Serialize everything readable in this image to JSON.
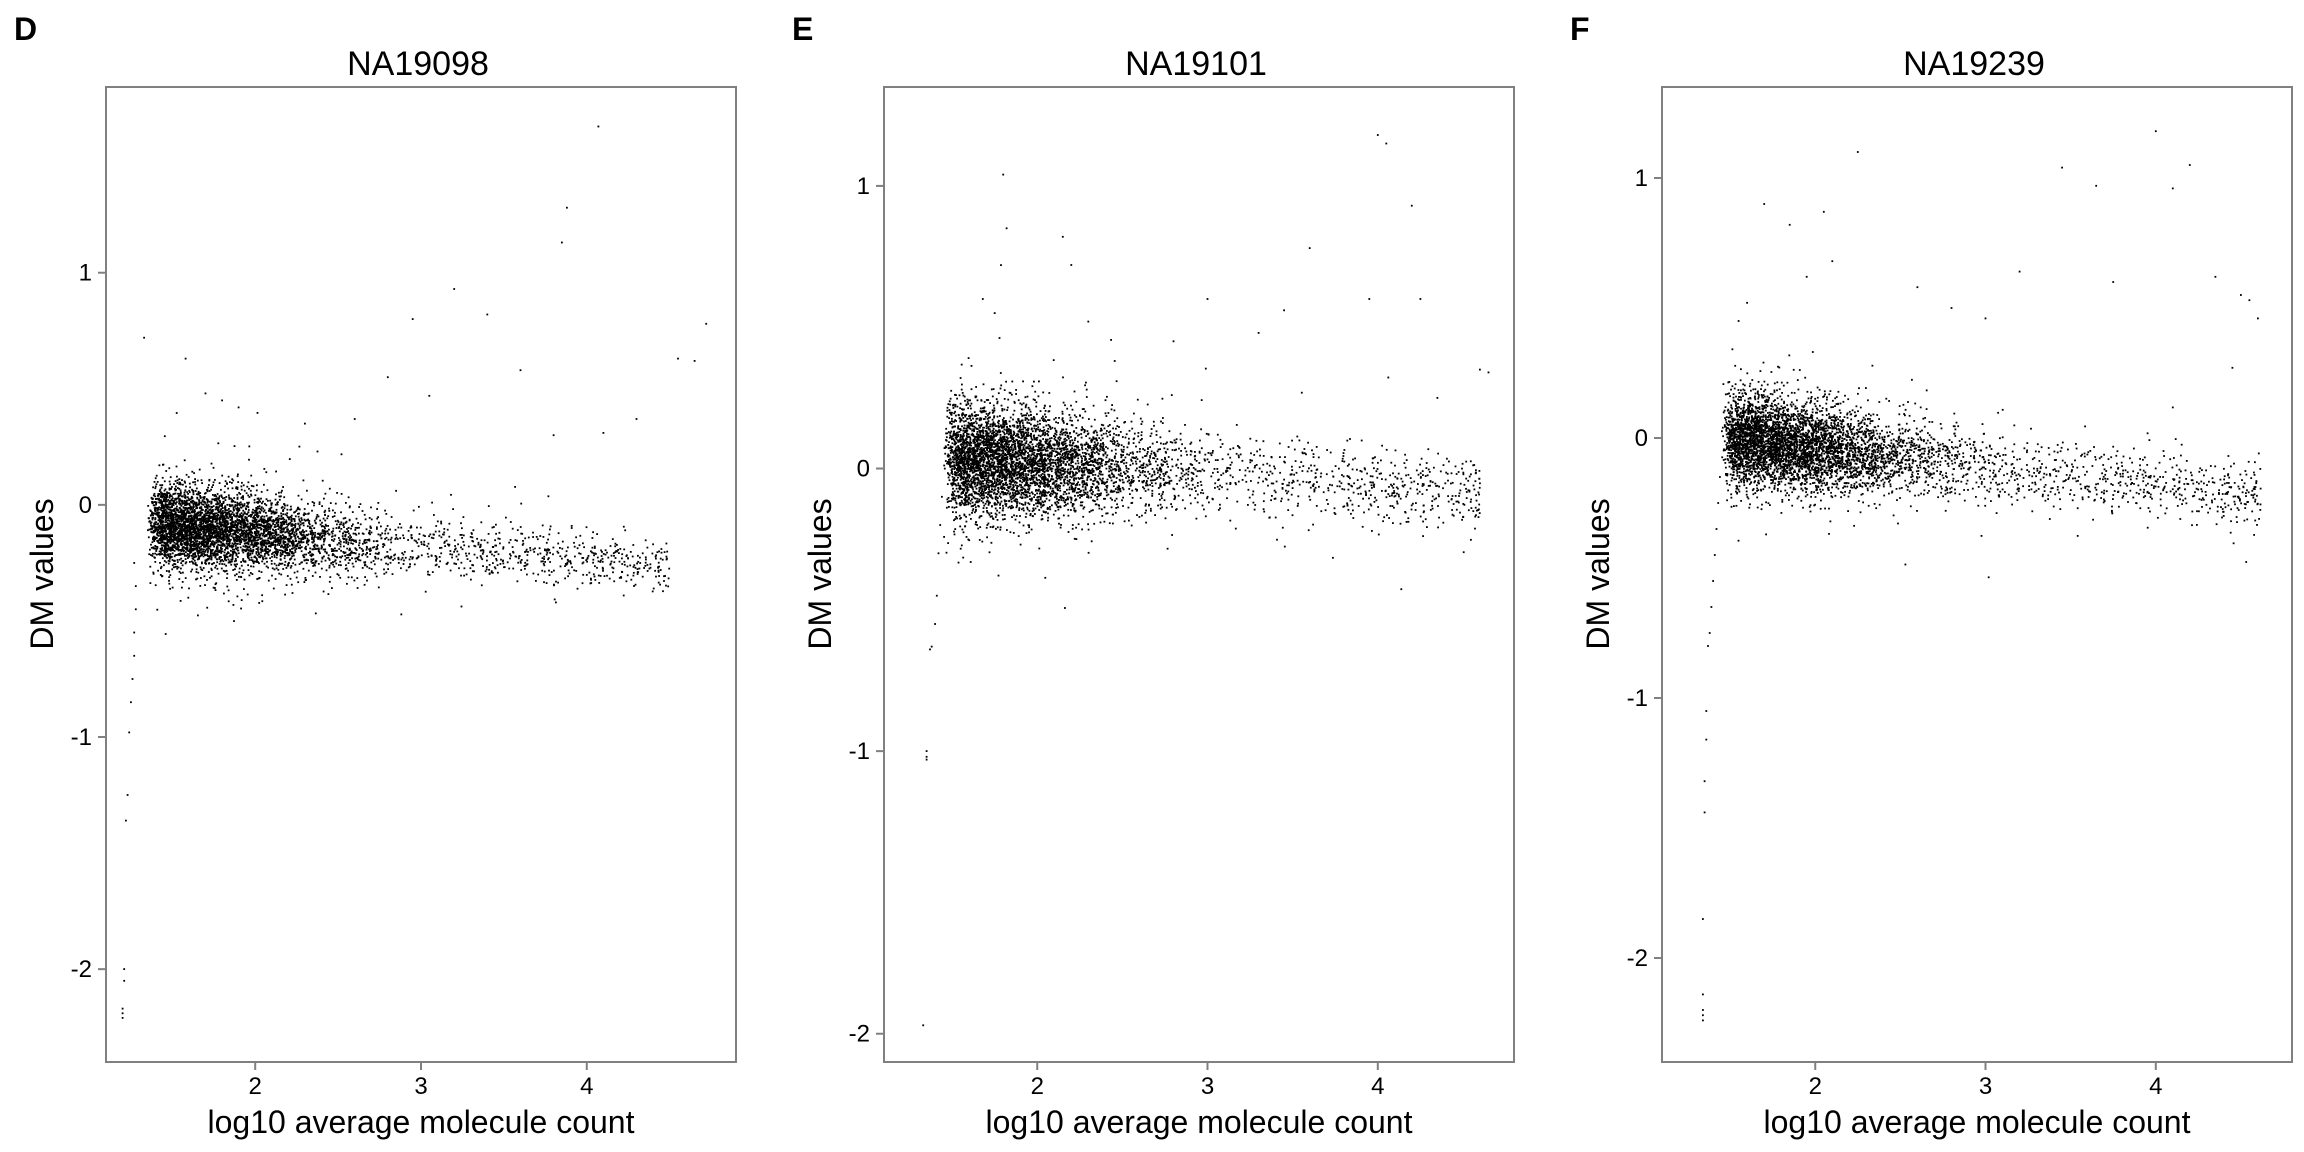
{
  "figure_panels": [
    "D",
    "E",
    "F"
  ],
  "chart_data": [
    {
      "type": "scatter",
      "panel_label": "D",
      "title": "NA19098",
      "xlabel": "log10 average molecule count",
      "ylabel": "DM values",
      "xlim": [
        1.1,
        4.9
      ],
      "ylim": [
        -2.4,
        1.8
      ],
      "xticks": [
        2,
        3,
        4
      ],
      "yticks": [
        -2,
        -1,
        0,
        1
      ],
      "grid": false,
      "legend": "none",
      "point_color": "#000000",
      "cloud": {
        "x_range": [
          1.35,
          4.5
        ],
        "center_y": -0.12,
        "trend_per_decade": -0.06,
        "spread_y": 0.09,
        "n_points": 5200
      },
      "low_tail": [
        [
          1.27,
          -0.25
        ],
        [
          1.28,
          -0.35
        ],
        [
          1.28,
          -0.45
        ],
        [
          1.27,
          -0.55
        ],
        [
          1.27,
          -0.65
        ],
        [
          1.26,
          -0.75
        ],
        [
          1.25,
          -0.85
        ],
        [
          1.24,
          -0.98
        ],
        [
          1.23,
          -1.25
        ],
        [
          1.22,
          -1.36
        ],
        [
          1.21,
          -2.0
        ],
        [
          1.21,
          -2.05
        ],
        [
          1.2,
          -2.17
        ],
        [
          1.2,
          -2.19
        ],
        [
          1.2,
          -2.21
        ]
      ],
      "outliers": [
        [
          1.33,
          0.72
        ],
        [
          1.58,
          0.63
        ],
        [
          1.7,
          0.48
        ],
        [
          1.8,
          0.45
        ],
        [
          1.9,
          0.42
        ],
        [
          2.3,
          0.35
        ],
        [
          2.6,
          0.37
        ],
        [
          2.8,
          0.55
        ],
        [
          2.95,
          0.8
        ],
        [
          3.05,
          0.47
        ],
        [
          3.2,
          0.93
        ],
        [
          3.4,
          0.82
        ],
        [
          3.6,
          0.58
        ],
        [
          3.8,
          0.3
        ],
        [
          3.85,
          1.13
        ],
        [
          3.88,
          1.28
        ],
        [
          4.07,
          1.63
        ],
        [
          4.1,
          0.31
        ],
        [
          4.3,
          0.37
        ],
        [
          4.55,
          0.63
        ],
        [
          4.65,
          0.62
        ],
        [
          4.72,
          0.78
        ],
        [
          4.4,
          -0.17
        ],
        [
          4.45,
          -0.19
        ]
      ]
    },
    {
      "type": "scatter",
      "panel_label": "E",
      "title": "NA19101",
      "xlabel": "log10 average molecule count",
      "ylabel": "DM values",
      "xlim": [
        1.1,
        4.8
      ],
      "ylim": [
        -2.1,
        1.35
      ],
      "xticks": [
        2,
        3,
        4
      ],
      "yticks": [
        -2,
        -1,
        0,
        1
      ],
      "grid": false,
      "legend": "none",
      "point_color": "#000000",
      "cloud": {
        "x_range": [
          1.45,
          4.6
        ],
        "center_y": 0.02,
        "trend_per_decade": -0.04,
        "spread_y": 0.1,
        "n_points": 5400
      },
      "low_tail": [
        [
          1.44,
          -0.1
        ],
        [
          1.43,
          -0.2
        ],
        [
          1.42,
          -0.3
        ],
        [
          1.41,
          -0.45
        ],
        [
          1.4,
          -0.55
        ],
        [
          1.38,
          -0.63
        ],
        [
          1.37,
          -0.64
        ],
        [
          1.35,
          -1.0
        ],
        [
          1.35,
          -1.02
        ],
        [
          1.35,
          -1.03
        ],
        [
          1.33,
          -1.97
        ]
      ],
      "outliers": [
        [
          1.68,
          0.6
        ],
        [
          1.75,
          0.55
        ],
        [
          1.8,
          1.04
        ],
        [
          1.82,
          0.85
        ],
        [
          2.15,
          0.82
        ],
        [
          2.2,
          0.72
        ],
        [
          2.3,
          0.52
        ],
        [
          2.8,
          0.45
        ],
        [
          3.0,
          0.6
        ],
        [
          3.3,
          0.48
        ],
        [
          3.45,
          0.56
        ],
        [
          3.6,
          0.78
        ],
        [
          3.95,
          0.6
        ],
        [
          4.0,
          1.18
        ],
        [
          4.05,
          1.15
        ],
        [
          4.2,
          0.93
        ],
        [
          4.25,
          0.6
        ],
        [
          4.35,
          0.25
        ],
        [
          4.6,
          0.35
        ],
        [
          4.65,
          0.34
        ]
      ]
    },
    {
      "type": "scatter",
      "panel_label": "F",
      "title": "NA19239",
      "xlabel": "log10 average molecule count",
      "ylabel": "DM values",
      "xlim": [
        1.1,
        4.8
      ],
      "ylim": [
        -2.4,
        1.35
      ],
      "xticks": [
        2,
        3,
        4
      ],
      "yticks": [
        -2,
        -1,
        0,
        1
      ],
      "grid": false,
      "legend": "none",
      "point_color": "#000000",
      "cloud": {
        "x_range": [
          1.45,
          4.62
        ],
        "center_y": -0.04,
        "trend_per_decade": -0.07,
        "spread_y": 0.09,
        "n_points": 5300
      },
      "low_tail": [
        [
          1.44,
          -0.15
        ],
        [
          1.43,
          -0.25
        ],
        [
          1.42,
          -0.35
        ],
        [
          1.41,
          -0.45
        ],
        [
          1.4,
          -0.55
        ],
        [
          1.39,
          -0.65
        ],
        [
          1.38,
          -0.75
        ],
        [
          1.37,
          -0.8
        ],
        [
          1.36,
          -1.05
        ],
        [
          1.36,
          -1.16
        ],
        [
          1.35,
          -1.32
        ],
        [
          1.35,
          -1.44
        ],
        [
          1.34,
          -1.85
        ],
        [
          1.34,
          -2.14
        ],
        [
          1.34,
          -2.2
        ],
        [
          1.34,
          -2.22
        ],
        [
          1.34,
          -2.24
        ]
      ],
      "outliers": [
        [
          1.55,
          0.45
        ],
        [
          1.6,
          0.52
        ],
        [
          1.7,
          0.9
        ],
        [
          1.85,
          0.82
        ],
        [
          1.95,
          0.62
        ],
        [
          2.05,
          0.87
        ],
        [
          2.1,
          0.68
        ],
        [
          2.25,
          1.1
        ],
        [
          2.6,
          0.58
        ],
        [
          2.8,
          0.5
        ],
        [
          3.0,
          0.46
        ],
        [
          3.2,
          0.64
        ],
        [
          3.45,
          1.04
        ],
        [
          3.65,
          0.97
        ],
        [
          3.75,
          0.6
        ],
        [
          4.0,
          1.18
        ],
        [
          4.1,
          0.96
        ],
        [
          4.2,
          1.05
        ],
        [
          4.35,
          0.62
        ],
        [
          4.5,
          0.55
        ],
        [
          4.55,
          0.53
        ],
        [
          4.6,
          0.46
        ],
        [
          4.45,
          0.27
        ]
      ]
    }
  ]
}
